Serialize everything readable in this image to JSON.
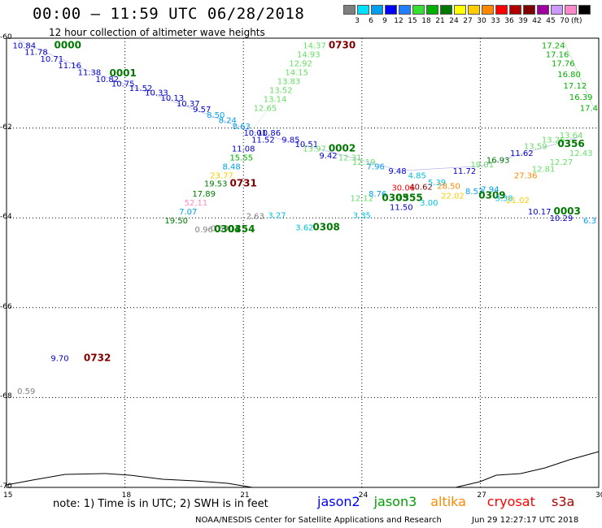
{
  "title": "00:00 – 11:59 UTC 06/28/2018",
  "subtitle": "12 hour collection of altimeter wave heights",
  "legend": {
    "unit": "(ft)",
    "colors": [
      "#7f7f7f",
      "#00e0ff",
      "#009ff0",
      "#0000ff",
      "#1f7fff",
      "#33e033",
      "#00b000",
      "#007800",
      "#ffff00",
      "#ffcc00",
      "#ff8800",
      "#ff0000",
      "#b00000",
      "#800000",
      "#a000a0",
      "#cc99ff",
      "#ff88cc",
      "#000000"
    ],
    "ticks": [
      "3",
      "6",
      "9",
      "12",
      "15",
      "18",
      "21",
      "24",
      "27",
      "30",
      "33",
      "36",
      "39",
      "42",
      "45",
      "70"
    ]
  },
  "axes": {
    "x_ticks": [
      "15",
      "18",
      "21",
      "24",
      "27",
      "30"
    ],
    "y_ticks": [
      "-60",
      "-62",
      "-64",
      "-66",
      "-68",
      "-70"
    ]
  },
  "map_data": {
    "lon_range": [
      15,
      30
    ],
    "lat_range": [
      -60,
      -70
    ],
    "labels": [
      {
        "t": "10.84",
        "lon": 15.45,
        "lat": -60.15,
        "c": "#0000cc"
      },
      {
        "t": "0000",
        "lon": 16.55,
        "lat": -60.15,
        "c": "#007800",
        "bold": true
      },
      {
        "t": "11.78",
        "lon": 15.75,
        "lat": -60.3,
        "c": "#0000cc"
      },
      {
        "t": "10.71",
        "lon": 16.15,
        "lat": -60.45,
        "c": "#0000cc"
      },
      {
        "t": "11.16",
        "lon": 16.6,
        "lat": -60.6,
        "c": "#0000cc"
      },
      {
        "t": "11.38",
        "lon": 17.1,
        "lat": -60.75,
        "c": "#0000cc"
      },
      {
        "t": "0001",
        "lon": 17.95,
        "lat": -60.78,
        "c": "#007800",
        "bold": true
      },
      {
        "t": "10.82",
        "lon": 17.55,
        "lat": -60.9,
        "c": "#0000cc"
      },
      {
        "t": "10.75",
        "lon": 17.95,
        "lat": -61.0,
        "c": "#0000cc"
      },
      {
        "t": "11.52",
        "lon": 18.4,
        "lat": -61.1,
        "c": "#0000cc"
      },
      {
        "t": "10.33",
        "lon": 18.8,
        "lat": -61.2,
        "c": "#0000cc"
      },
      {
        "t": "10.13",
        "lon": 19.2,
        "lat": -61.32,
        "c": "#0000cc"
      },
      {
        "t": "10.37",
        "lon": 19.6,
        "lat": -61.45,
        "c": "#0000cc"
      },
      {
        "t": "9.57",
        "lon": 19.95,
        "lat": -61.57,
        "c": "#0000cc"
      },
      {
        "t": "8.50",
        "lon": 20.3,
        "lat": -61.7,
        "c": "#009ff0"
      },
      {
        "t": "8.24",
        "lon": 20.6,
        "lat": -61.82,
        "c": "#009ff0"
      },
      {
        "t": "8.63",
        "lon": 20.95,
        "lat": -61.95,
        "c": "#009ff0"
      },
      {
        "t": "10.01",
        "lon": 21.3,
        "lat": -62.1,
        "c": "#0000cc"
      },
      {
        "t": "10.86",
        "lon": 21.65,
        "lat": -62.1,
        "c": "#0000cc"
      },
      {
        "t": "11.52",
        "lon": 21.5,
        "lat": -62.25,
        "c": "#0000cc"
      },
      {
        "t": "9.85",
        "lon": 22.2,
        "lat": -62.25,
        "c": "#0000cc"
      },
      {
        "t": "10.51",
        "lon": 22.6,
        "lat": -62.35,
        "c": "#0000cc"
      },
      {
        "t": "11.08",
        "lon": 21.0,
        "lat": -62.45,
        "c": "#0000cc"
      },
      {
        "t": "15.55",
        "lon": 20.95,
        "lat": -62.65,
        "c": "#00b000"
      },
      {
        "t": "8.48",
        "lon": 20.7,
        "lat": -62.85,
        "c": "#009ff0"
      },
      {
        "t": "23.77",
        "lon": 20.45,
        "lat": -63.05,
        "c": "#ffcc00"
      },
      {
        "t": "19.53",
        "lon": 20.3,
        "lat": -63.23,
        "c": "#007800"
      },
      {
        "t": "0731",
        "lon": 21.0,
        "lat": -63.23,
        "c": "#800000",
        "bold": true
      },
      {
        "t": "17.89",
        "lon": 20.0,
        "lat": -63.45,
        "c": "#007800"
      },
      {
        "t": "52.11",
        "lon": 19.8,
        "lat": -63.65,
        "c": "#ff88cc"
      },
      {
        "t": "7.07",
        "lon": 19.6,
        "lat": -63.85,
        "c": "#009ff0"
      },
      {
        "t": "19.50",
        "lon": 19.3,
        "lat": -64.05,
        "c": "#007800"
      },
      {
        "t": "0.96",
        "lon": 20.0,
        "lat": -64.25,
        "c": "#7f7f7f"
      },
      {
        "t": "0.59",
        "lon": 20.4,
        "lat": -64.22,
        "c": "#7f7f7f"
      },
      {
        "t": "0304",
        "lon": 20.6,
        "lat": -64.25,
        "c": "#007800",
        "bold": true
      },
      {
        "t": "0354",
        "lon": 20.95,
        "lat": -64.25,
        "c": "#007800",
        "bold": true
      },
      {
        "t": "2.63",
        "lon": 21.3,
        "lat": -63.95,
        "c": "#7f7f7f"
      },
      {
        "t": "3.27",
        "lon": 21.85,
        "lat": -63.93,
        "c": "#00c0e0"
      },
      {
        "t": "3.62",
        "lon": 22.55,
        "lat": -64.2,
        "c": "#00c0e0"
      },
      {
        "t": "0308",
        "lon": 23.1,
        "lat": -64.2,
        "c": "#007800",
        "bold": true
      },
      {
        "t": "3.35",
        "lon": 24.0,
        "lat": -63.93,
        "c": "#00c0e0"
      },
      {
        "t": "14.37",
        "lon": 22.8,
        "lat": -60.15,
        "c": "#66dd66"
      },
      {
        "t": "0730",
        "lon": 23.5,
        "lat": -60.15,
        "c": "#800000",
        "bold": true
      },
      {
        "t": "14.93",
        "lon": 22.65,
        "lat": -60.35,
        "c": "#66dd66"
      },
      {
        "t": "12.92",
        "lon": 22.45,
        "lat": -60.55,
        "c": "#66dd66"
      },
      {
        "t": "14.15",
        "lon": 22.35,
        "lat": -60.75,
        "c": "#66dd66"
      },
      {
        "t": "13.83",
        "lon": 22.15,
        "lat": -60.95,
        "c": "#66dd66"
      },
      {
        "t": "13.52",
        "lon": 21.95,
        "lat": -61.15,
        "c": "#66dd66"
      },
      {
        "t": "13.14",
        "lon": 21.8,
        "lat": -61.35,
        "c": "#66dd66"
      },
      {
        "t": "12.65",
        "lon": 21.55,
        "lat": -61.55,
        "c": "#66dd66"
      },
      {
        "t": "13.97",
        "lon": 22.8,
        "lat": -62.45,
        "c": "#66dd66"
      },
      {
        "t": "0002",
        "lon": 23.5,
        "lat": -62.45,
        "c": "#007800",
        "bold": true
      },
      {
        "t": "9.42",
        "lon": 23.15,
        "lat": -62.6,
        "c": "#0000cc"
      },
      {
        "t": "12.31",
        "lon": 23.7,
        "lat": -62.65,
        "c": "#66dd66"
      },
      {
        "t": "12.19",
        "lon": 24.05,
        "lat": -62.75,
        "c": "#66dd66"
      },
      {
        "t": "7.96",
        "lon": 24.35,
        "lat": -62.85,
        "c": "#009ff0"
      },
      {
        "t": "9.48",
        "lon": 24.9,
        "lat": -62.95,
        "c": "#0000cc"
      },
      {
        "t": "4.85",
        "lon": 25.4,
        "lat": -63.05,
        "c": "#00c0e0"
      },
      {
        "t": "40.62",
        "lon": 25.5,
        "lat": -63.3,
        "c": "#800000"
      },
      {
        "t": "30.06",
        "lon": 25.05,
        "lat": -63.32,
        "c": "#ff0000"
      },
      {
        "t": "5.39",
        "lon": 25.9,
        "lat": -63.2,
        "c": "#00c0e0"
      },
      {
        "t": "28.50",
        "lon": 26.2,
        "lat": -63.28,
        "c": "#ff8800"
      },
      {
        "t": "12.12",
        "lon": 24.0,
        "lat": -63.55,
        "c": "#66dd66"
      },
      {
        "t": "8.76",
        "lon": 24.4,
        "lat": -63.45,
        "c": "#009ff0"
      },
      {
        "t": "0305",
        "lon": 24.85,
        "lat": -63.55,
        "c": "#007800",
        "bold": true
      },
      {
        "t": "0355",
        "lon": 25.2,
        "lat": -63.55,
        "c": "#007800",
        "bold": true
      },
      {
        "t": "11.50",
        "lon": 25.0,
        "lat": -63.75,
        "c": "#0000cc"
      },
      {
        "t": "3.00",
        "lon": 25.7,
        "lat": -63.65,
        "c": "#00c0e0"
      },
      {
        "t": "22.02",
        "lon": 26.3,
        "lat": -63.5,
        "c": "#ffcc00"
      },
      {
        "t": "8.53",
        "lon": 26.85,
        "lat": -63.4,
        "c": "#009ff0"
      },
      {
        "t": "7.94",
        "lon": 27.25,
        "lat": -63.35,
        "c": "#009ff0"
      },
      {
        "t": "0309",
        "lon": 27.3,
        "lat": -63.5,
        "c": "#007800",
        "bold": true
      },
      {
        "t": "3.38",
        "lon": 27.6,
        "lat": -63.55,
        "c": "#00c0e0"
      },
      {
        "t": "21.02",
        "lon": 27.95,
        "lat": -63.6,
        "c": "#ffcc00"
      },
      {
        "t": "11.72",
        "lon": 26.6,
        "lat": -62.95,
        "c": "#0000cc"
      },
      {
        "t": "19.01",
        "lon": 27.05,
        "lat": -62.8,
        "c": "#66dd66"
      },
      {
        "t": "16.93",
        "lon": 27.45,
        "lat": -62.7,
        "c": "#007800"
      },
      {
        "t": "11.62",
        "lon": 28.05,
        "lat": -62.55,
        "c": "#0000cc"
      },
      {
        "t": "27.36",
        "lon": 28.15,
        "lat": -63.05,
        "c": "#ff8800"
      },
      {
        "t": "12.81",
        "lon": 28.6,
        "lat": -62.9,
        "c": "#66dd66"
      },
      {
        "t": "12.27",
        "lon": 29.05,
        "lat": -62.75,
        "c": "#66dd66"
      },
      {
        "t": "12.43",
        "lon": 29.55,
        "lat": -62.55,
        "c": "#66dd66"
      },
      {
        "t": "13.59",
        "lon": 28.4,
        "lat": -62.4,
        "c": "#66dd66"
      },
      {
        "t": "13.26",
        "lon": 28.85,
        "lat": -62.25,
        "c": "#66dd66"
      },
      {
        "t": "13.64",
        "lon": 29.3,
        "lat": -62.15,
        "c": "#66dd66"
      },
      {
        "t": "0356",
        "lon": 29.3,
        "lat": -62.35,
        "c": "#007800",
        "bold": true
      },
      {
        "t": "17.24",
        "lon": 28.85,
        "lat": -60.15,
        "c": "#00b000"
      },
      {
        "t": "17.16",
        "lon": 28.95,
        "lat": -60.35,
        "c": "#00b000"
      },
      {
        "t": "17.76",
        "lon": 29.1,
        "lat": -60.55,
        "c": "#00b000"
      },
      {
        "t": "16.80",
        "lon": 29.25,
        "lat": -60.8,
        "c": "#00b000"
      },
      {
        "t": "17.12",
        "lon": 29.4,
        "lat": -61.05,
        "c": "#00b000"
      },
      {
        "t": "16.39",
        "lon": 29.55,
        "lat": -61.3,
        "c": "#00b000"
      },
      {
        "t": "17.4",
        "lon": 29.75,
        "lat": -61.55,
        "c": "#00b000"
      },
      {
        "t": "10.17",
        "lon": 28.5,
        "lat": -63.85,
        "c": "#0000cc"
      },
      {
        "t": "0003",
        "lon": 29.2,
        "lat": -63.85,
        "c": "#007800",
        "bold": true
      },
      {
        "t": "10.29",
        "lon": 29.05,
        "lat": -64.0,
        "c": "#0000cc"
      },
      {
        "t": "6.3",
        "lon": 29.8,
        "lat": -64.05,
        "c": "#009ff0"
      },
      {
        "t": "9.70",
        "lon": 16.35,
        "lat": -67.12,
        "c": "#0000cc"
      },
      {
        "t": "0732",
        "lon": 17.3,
        "lat": -67.12,
        "c": "#800000",
        "bold": true
      },
      {
        "t": "0.59",
        "lon": 15.5,
        "lat": -67.85,
        "c": "#7f7f7f"
      }
    ],
    "tracks": [
      {
        "c": "#0000cc",
        "pts": [
          [
            15.3,
            -60.05
          ],
          [
            17.0,
            -60.7
          ],
          [
            19.5,
            -61.5
          ],
          [
            21.3,
            -62.1
          ],
          [
            23.5,
            -62.6
          ],
          [
            25.0,
            -62.95
          ],
          [
            27.0,
            -62.85
          ],
          [
            29.5,
            -62.2
          ]
        ]
      },
      {
        "c": "#66dd66",
        "pts": [
          [
            22.9,
            -60.05
          ],
          [
            21.6,
            -61.6
          ],
          [
            20.6,
            -62.8
          ],
          [
            19.9,
            -63.6
          ],
          [
            19.5,
            -64.1
          ]
        ]
      },
      {
        "c": "#007800",
        "pts": [
          [
            29.1,
            -60.05
          ],
          [
            29.9,
            -61.6
          ]
        ]
      }
    ]
  },
  "note": "note:  1) Time is in UTC;  2) SWH is in feet",
  "satellites": [
    {
      "name": "jason2",
      "color": "#0000ff"
    },
    {
      "name": "jason3",
      "color": "#00a000"
    },
    {
      "name": "altika",
      "color": "#ff8800"
    },
    {
      "name": "cryosat",
      "color": "#ff0000"
    },
    {
      "name": "s3a",
      "color": "#b00000"
    }
  ],
  "credit": "NOAA/NESDIS Center for Satellite Applications and Research",
  "generated": "Jun 29 12:27:17 UTC 2018"
}
